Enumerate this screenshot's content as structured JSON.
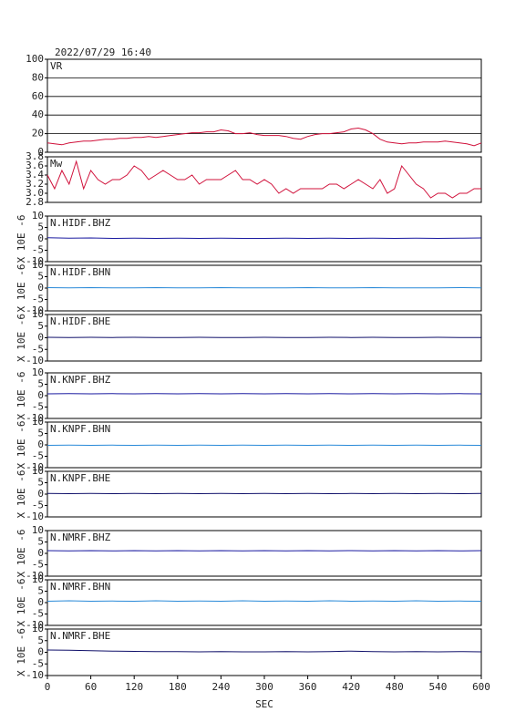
{
  "chart_data": [
    {
      "type": "line",
      "title": "2022/07/29 16:40",
      "label": "VR",
      "color": "#d0103a",
      "grid": true,
      "xlim": [
        0,
        600
      ],
      "ylim": [
        0,
        100
      ],
      "yticks": [
        0,
        20,
        40,
        60,
        80,
        100
      ],
      "x": [
        0,
        10,
        20,
        30,
        40,
        50,
        60,
        70,
        80,
        90,
        100,
        110,
        120,
        130,
        140,
        150,
        160,
        170,
        180,
        190,
        200,
        210,
        220,
        230,
        240,
        250,
        260,
        270,
        280,
        290,
        300,
        310,
        320,
        330,
        340,
        350,
        360,
        370,
        380,
        390,
        400,
        410,
        420,
        430,
        440,
        450,
        460,
        470,
        480,
        490,
        500,
        510,
        520,
        530,
        540,
        550,
        560,
        570,
        580,
        590,
        600
      ],
      "values": [
        10,
        9,
        8,
        10,
        11,
        12,
        12,
        13,
        14,
        14,
        15,
        15,
        16,
        16,
        17,
        16,
        17,
        18,
        19,
        20,
        21,
        21,
        22,
        22,
        24,
        23,
        20,
        20,
        21,
        19,
        18,
        18,
        18,
        17,
        15,
        14,
        17,
        19,
        20,
        20,
        21,
        22,
        25,
        26,
        24,
        20,
        14,
        11,
        10,
        9,
        10,
        10,
        11,
        11,
        11,
        12,
        11,
        10,
        9,
        7,
        10
      ]
    },
    {
      "type": "line",
      "label": "Mw",
      "color": "#d0103a",
      "xlim": [
        0,
        600
      ],
      "ylim": [
        2.8,
        3.8
      ],
      "yticks": [
        2.8,
        {
          "value": 3,
          "label": "3.0"
        },
        3.2,
        3.4,
        3.6,
        3.8
      ],
      "x": [
        0,
        10,
        20,
        30,
        40,
        50,
        60,
        70,
        80,
        90,
        100,
        110,
        120,
        130,
        140,
        150,
        160,
        170,
        180,
        190,
        200,
        210,
        220,
        230,
        240,
        250,
        260,
        270,
        280,
        290,
        300,
        310,
        320,
        330,
        340,
        350,
        360,
        370,
        380,
        390,
        400,
        410,
        420,
        430,
        440,
        450,
        460,
        470,
        480,
        490,
        500,
        510,
        520,
        530,
        540,
        550,
        560,
        570,
        580,
        590,
        600
      ],
      "values": [
        3.4,
        3.1,
        3.5,
        3.2,
        3.7,
        3.1,
        3.5,
        3.3,
        3.2,
        3.3,
        3.3,
        3.4,
        3.6,
        3.5,
        3.3,
        3.4,
        3.5,
        3.4,
        3.3,
        3.3,
        3.4,
        3.2,
        3.3,
        3.3,
        3.3,
        3.4,
        3.5,
        3.3,
        3.3,
        3.2,
        3.3,
        3.2,
        3.0,
        3.1,
        3.0,
        3.1,
        3.1,
        3.1,
        3.1,
        3.2,
        3.2,
        3.1,
        3.2,
        3.3,
        3.2,
        3.1,
        3.3,
        3.0,
        3.1,
        3.6,
        3.4,
        3.2,
        3.1,
        2.9,
        3.0,
        3.0,
        2.9,
        3.0,
        3.0,
        3.1,
        3.1
      ]
    },
    {
      "type": "line",
      "label": "N.HIDF.BHZ",
      "ylabel": "X 10E -6",
      "color": "#1a1aa0",
      "xlim": [
        0,
        600
      ],
      "ylim": [
        -10,
        10
      ],
      "yticks": [
        -10,
        -5,
        0,
        5,
        10
      ],
      "x": [
        0,
        30,
        60,
        90,
        120,
        150,
        180,
        210,
        240,
        270,
        300,
        330,
        360,
        390,
        420,
        450,
        480,
        510,
        540,
        570,
        600
      ],
      "values": [
        0.5,
        0.3,
        0.4,
        0.2,
        0.3,
        0.2,
        0.3,
        0.2,
        0.3,
        0.2,
        0.2,
        0.3,
        0.2,
        0.3,
        0.2,
        0.3,
        0.2,
        0.3,
        0.2,
        0.3,
        0.4
      ]
    },
    {
      "type": "line",
      "label": "N.HIDF.BHN",
      "ylabel": "X 10E -6",
      "color": "#2a8ad8",
      "xlim": [
        0,
        600
      ],
      "ylim": [
        -10,
        10
      ],
      "yticks": [
        -10,
        -5,
        0,
        5,
        10
      ],
      "x": [
        0,
        30,
        60,
        90,
        120,
        150,
        180,
        210,
        240,
        270,
        300,
        330,
        360,
        390,
        420,
        450,
        480,
        510,
        540,
        570,
        600
      ],
      "values": [
        0.2,
        0.1,
        0.2,
        0.1,
        0.1,
        0.2,
        0.1,
        0.1,
        0.2,
        0.1,
        0.1,
        0.1,
        0.2,
        0.1,
        0.1,
        0.2,
        0.1,
        0.1,
        0.1,
        0.2,
        0.1
      ]
    },
    {
      "type": "line",
      "label": "N.HIDF.BHE",
      "ylabel": "X 10E -6",
      "color": "#10106a",
      "xlim": [
        0,
        600
      ],
      "ylim": [
        -10,
        10
      ],
      "yticks": [
        -10,
        -5,
        0,
        5,
        10
      ],
      "x": [
        0,
        30,
        60,
        90,
        120,
        150,
        180,
        210,
        240,
        270,
        300,
        330,
        360,
        390,
        420,
        450,
        480,
        510,
        540,
        570,
        600
      ],
      "values": [
        0.2,
        0.1,
        0.2,
        0.1,
        0.2,
        0.1,
        0.1,
        0.2,
        0.1,
        0.1,
        0.2,
        0.1,
        0.1,
        0.2,
        0.1,
        0.2,
        0.1,
        0.1,
        0.2,
        0.1,
        0.1
      ]
    },
    {
      "type": "line",
      "label": "N.KNPF.BHZ",
      "ylabel": "X 10E -6",
      "color": "#1a1aa0",
      "xlim": [
        0,
        600
      ],
      "ylim": [
        -10,
        10
      ],
      "yticks": [
        -10,
        -5,
        0,
        5,
        10
      ],
      "x": [
        0,
        30,
        60,
        90,
        120,
        150,
        180,
        210,
        240,
        270,
        300,
        330,
        360,
        390,
        420,
        450,
        480,
        510,
        540,
        570,
        600
      ],
      "values": [
        0.8,
        0.9,
        0.8,
        0.9,
        0.8,
        0.9,
        0.8,
        0.9,
        0.8,
        0.9,
        0.8,
        0.9,
        0.8,
        0.9,
        0.8,
        0.9,
        0.8,
        0.9,
        0.8,
        0.9,
        0.8
      ]
    },
    {
      "type": "line",
      "label": "N.KNPF.BHN",
      "ylabel": "X 10E -6",
      "color": "#2a8ad8",
      "xlim": [
        0,
        600
      ],
      "ylim": [
        -10,
        10
      ],
      "yticks": [
        -10,
        -5,
        0,
        5,
        10
      ],
      "x": [
        0,
        30,
        60,
        90,
        120,
        150,
        180,
        210,
        240,
        270,
        300,
        330,
        360,
        390,
        420,
        450,
        480,
        510,
        540,
        570,
        600
      ],
      "values": [
        -0.2,
        -0.1,
        -0.2,
        -0.1,
        -0.2,
        -0.1,
        -0.2,
        -0.1,
        -0.2,
        -0.1,
        -0.2,
        -0.1,
        -0.2,
        -0.1,
        -0.2,
        -0.1,
        -0.2,
        -0.1,
        -0.2,
        -0.1,
        -0.2
      ]
    },
    {
      "type": "line",
      "label": "N.KNPF.BHE",
      "ylabel": "X 10E -6",
      "color": "#10106a",
      "xlim": [
        0,
        600
      ],
      "ylim": [
        -10,
        10
      ],
      "yticks": [
        -10,
        -5,
        0,
        5,
        10
      ],
      "x": [
        0,
        30,
        60,
        90,
        120,
        150,
        180,
        210,
        240,
        270,
        300,
        330,
        360,
        390,
        420,
        450,
        480,
        510,
        540,
        570,
        600
      ],
      "values": [
        0.3,
        0.2,
        0.3,
        0.2,
        0.3,
        0.2,
        0.3,
        0.2,
        0.3,
        0.2,
        0.3,
        0.2,
        0.3,
        0.2,
        0.3,
        0.2,
        0.3,
        0.2,
        0.3,
        0.2,
        0.3
      ]
    },
    {
      "type": "line",
      "label": "N.NMRF.BHZ",
      "ylabel": "X 10E -6",
      "color": "#1a1aa0",
      "xlim": [
        0,
        600
      ],
      "ylim": [
        -10,
        10
      ],
      "yticks": [
        -10,
        -5,
        0,
        5,
        10
      ],
      "x": [
        0,
        30,
        60,
        90,
        120,
        150,
        180,
        210,
        240,
        270,
        300,
        330,
        360,
        390,
        420,
        450,
        480,
        510,
        540,
        570,
        600
      ],
      "values": [
        1.2,
        1.1,
        1.2,
        1.1,
        1.2,
        1.1,
        1.2,
        1.1,
        1.2,
        1.1,
        1.2,
        1.1,
        1.2,
        1.1,
        1.2,
        1.1,
        1.2,
        1.1,
        1.2,
        1.1,
        1.2
      ]
    },
    {
      "type": "line",
      "label": "N.NMRF.BHN",
      "ylabel": "X 10E -6",
      "color": "#2a8ad8",
      "xlim": [
        0,
        600
      ],
      "ylim": [
        -10,
        10
      ],
      "yticks": [
        -10,
        -5,
        0,
        5,
        10
      ],
      "x": [
        0,
        30,
        60,
        90,
        120,
        150,
        180,
        210,
        240,
        270,
        300,
        330,
        360,
        390,
        420,
        450,
        480,
        510,
        540,
        570,
        600
      ],
      "values": [
        0.6,
        0.8,
        0.6,
        0.7,
        0.6,
        0.8,
        0.6,
        0.7,
        0.6,
        0.8,
        0.6,
        0.7,
        0.6,
        0.8,
        0.6,
        0.7,
        0.6,
        0.8,
        0.6,
        0.7,
        0.6
      ]
    },
    {
      "type": "line",
      "label": "N.NMRF.BHE",
      "ylabel": "X 10E -6",
      "color": "#10106a",
      "xlabel": "SEC",
      "xlim": [
        0,
        600
      ],
      "ylim": [
        -10,
        10
      ],
      "yticks": [
        -10,
        -5,
        0,
        5,
        10
      ],
      "xticks": [
        0,
        60,
        120,
        180,
        240,
        300,
        360,
        420,
        480,
        540,
        600
      ],
      "x": [
        0,
        30,
        60,
        90,
        120,
        150,
        180,
        210,
        240,
        270,
        300,
        330,
        360,
        390,
        420,
        450,
        480,
        510,
        540,
        570,
        600
      ],
      "values": [
        1.0,
        0.9,
        0.7,
        0.5,
        0.4,
        0.3,
        0.3,
        0.2,
        0.3,
        0.2,
        0.2,
        0.3,
        0.2,
        0.3,
        0.5,
        0.3,
        0.2,
        0.3,
        0.2,
        0.3,
        0.2
      ]
    }
  ]
}
